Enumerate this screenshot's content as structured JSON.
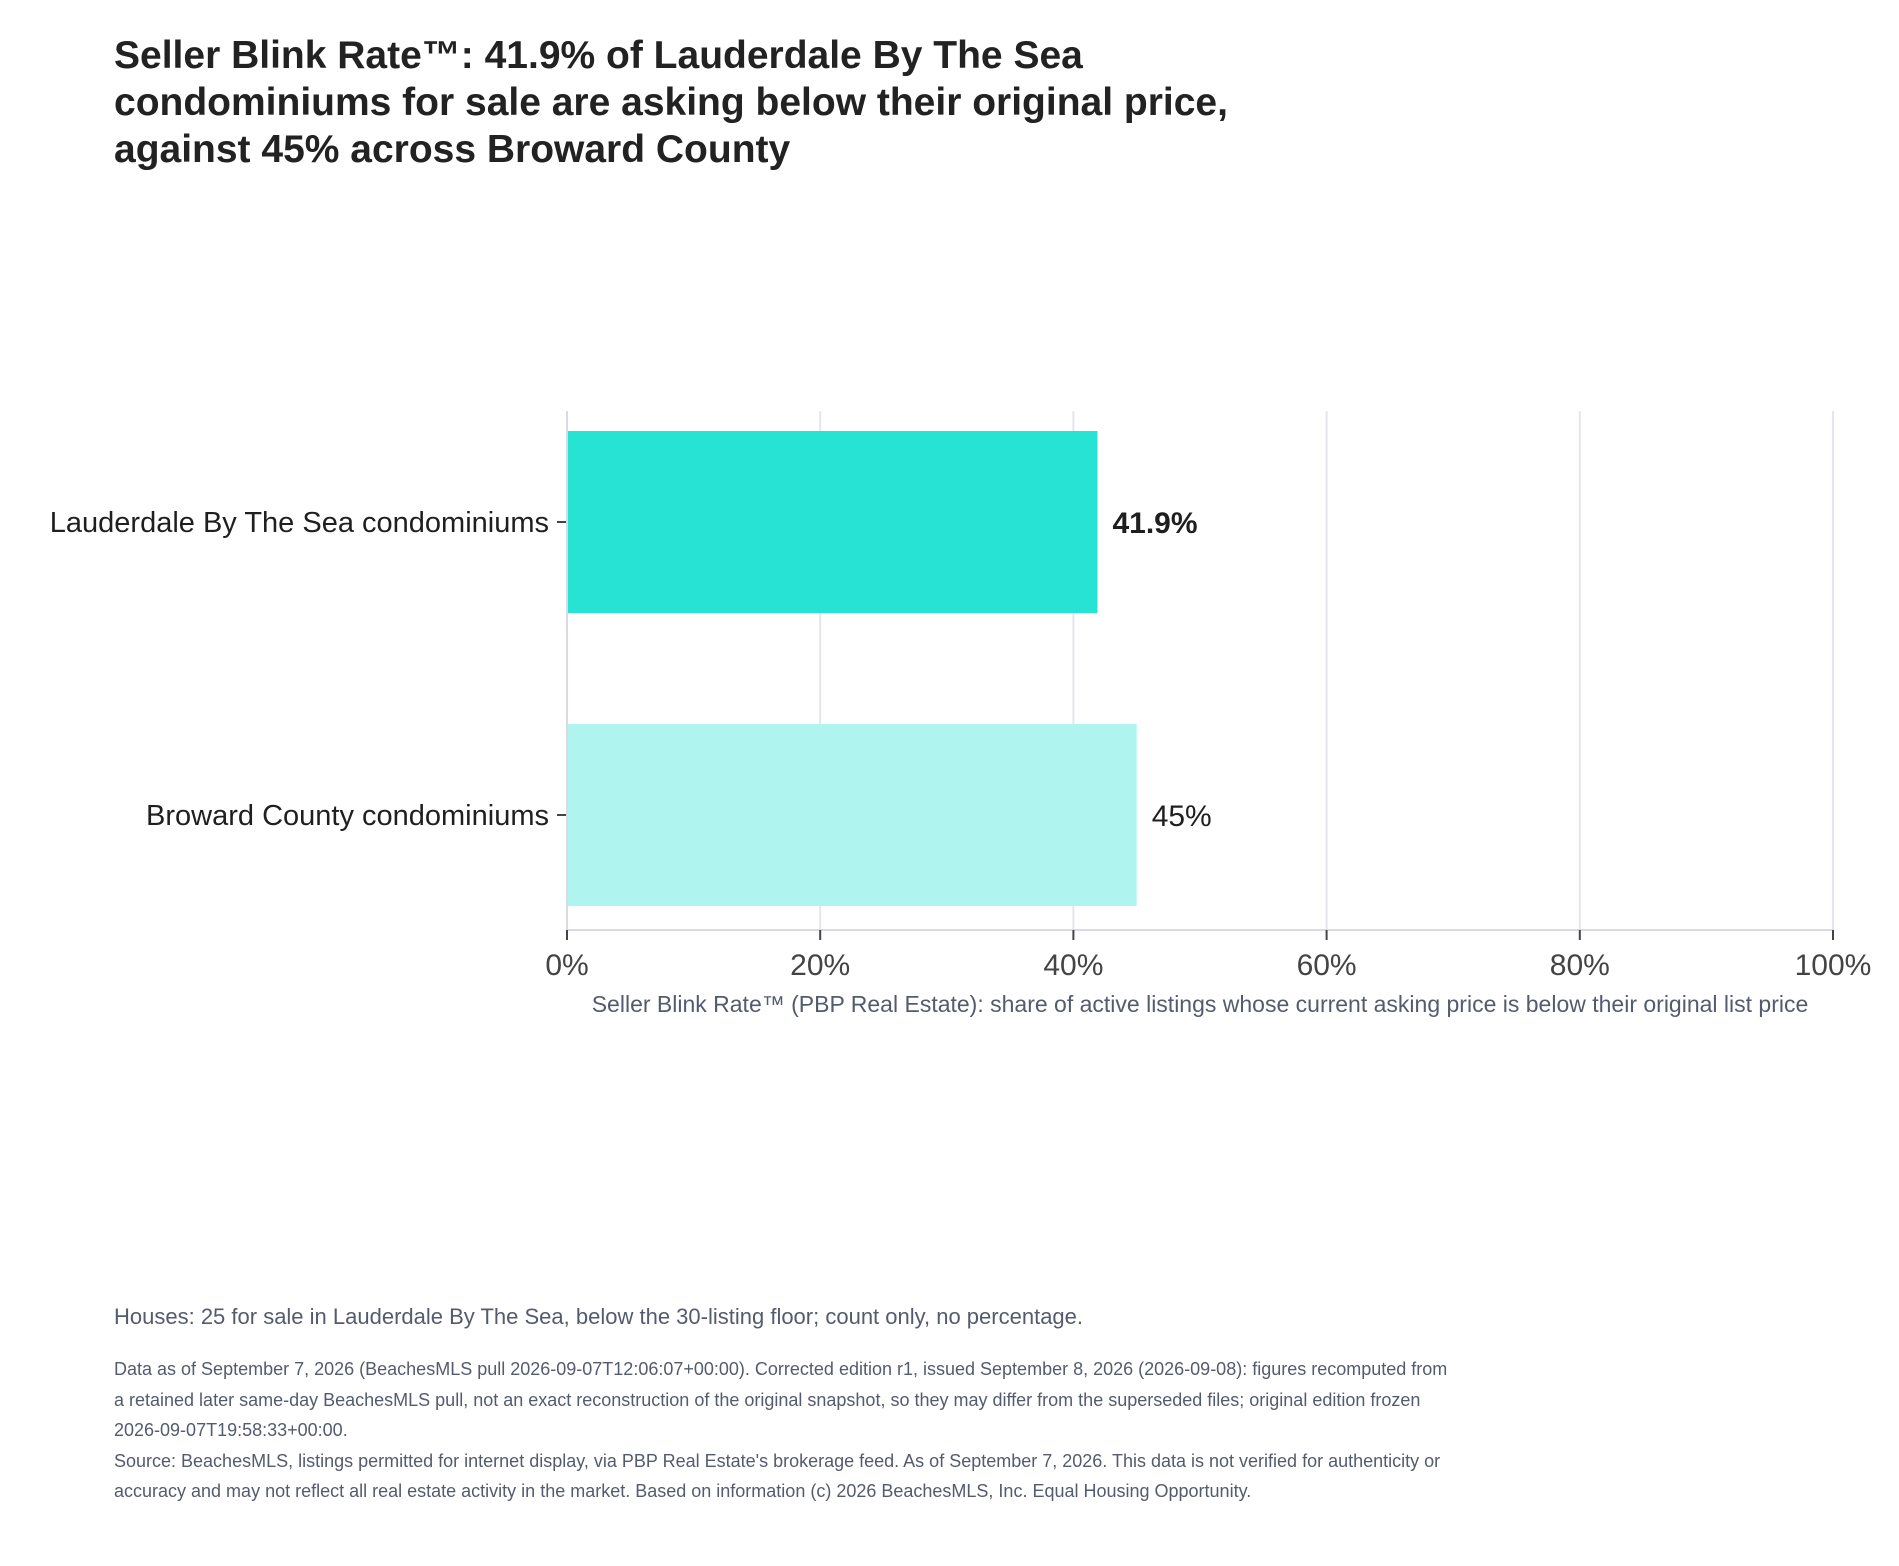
{
  "title": "Seller Blink Rate™: 41.9% of Lauderdale By The Sea condominiums for sale are asking below their original price, against 45% across Broward County",
  "chart_data": {
    "type": "bar",
    "orientation": "horizontal",
    "categories": [
      "Lauderdale By The Sea condominiums",
      "Broward County condominiums"
    ],
    "values": [
      41.9,
      45
    ],
    "value_labels": [
      "41.9%",
      "45%"
    ],
    "bar_colors": [
      "#26e3d4",
      "#b0f4ef"
    ],
    "highlight_index": 0,
    "xlim": [
      0,
      100
    ],
    "xticks": [
      0,
      20,
      40,
      60,
      80,
      100
    ],
    "xtick_labels": [
      "0%",
      "20%",
      "40%",
      "60%",
      "80%",
      "100%"
    ],
    "xlabel": "Seller Blink Rate™ (PBP Real Estate): share of active listings whose current asking price is below their original list price",
    "grid": true,
    "gridline_color": "#e4e6ef"
  },
  "note": "Houses: 25 for sale in Lauderdale By The Sea, below the 30-listing floor; count only, no percentage.",
  "footer": {
    "edition": "Data as of September 7, 2026 (BeachesMLS pull 2026-09-07T12:06:07+00:00). Corrected edition r1, issued September 8, 2026 (2026-09-08): figures recomputed from a retained later same-day BeachesMLS pull, not an exact reconstruction of the original snapshot, so they may differ from the superseded files; original edition frozen 2026-09-07T19:58:33+00:00.",
    "source": "Source: BeachesMLS, listings permitted for internet display, via PBP Real Estate's brokerage feed. As of September 7, 2026. This data is not verified for authenticity or accuracy and may not reflect all real estate activity in the market. Based on information (c) 2026 BeachesMLS, Inc. Equal Housing Opportunity."
  }
}
